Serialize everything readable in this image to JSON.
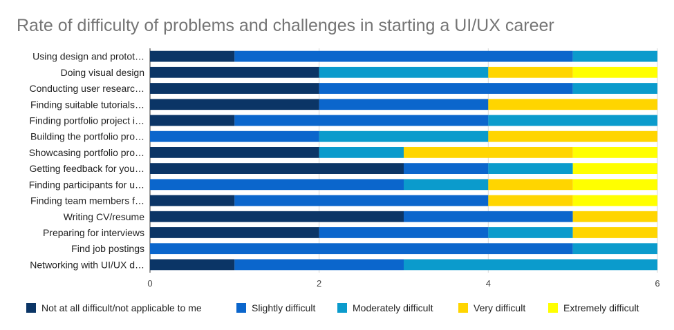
{
  "chart_data": {
    "type": "bar",
    "orientation": "horizontal",
    "stacked": true,
    "title": "Rate of difficulty of problems and challenges in starting a UI/UX career",
    "xlabel": "",
    "ylabel": "",
    "xlim": [
      0,
      6
    ],
    "xticks": [
      "0",
      "2",
      "4",
      "6"
    ],
    "grid": true,
    "legend_position": "bottom",
    "categories": [
      "Using design and protot…",
      "Doing visual design",
      "Conducting user researc…",
      "Finding suitable tutorials…",
      "Finding portfolio project i…",
      "Building the portfolio pro…",
      "Showcasing portfolio pro…",
      "Getting feedback for you…",
      "Finding participants for u…",
      "Finding team members f…",
      "Writing CV/resume",
      "Preparing for interviews",
      "Find job postings",
      "Networking with UI/UX d…"
    ],
    "series": [
      {
        "name": "Not at all difficult/not applicable to me",
        "color": "#0b3566",
        "values": [
          1,
          2,
          2,
          2,
          1,
          0,
          2,
          3,
          0,
          1,
          3,
          2,
          0,
          1
        ]
      },
      {
        "name": "Slightly difficult",
        "color": "#0b66cc",
        "values": [
          4,
          0,
          3,
          2,
          3,
          2,
          0,
          1,
          3,
          3,
          2,
          2,
          5,
          2
        ]
      },
      {
        "name": "Moderately difficult",
        "color": "#0b9bcc",
        "values": [
          1,
          2,
          1,
          0,
          2,
          2,
          1,
          1,
          1,
          0,
          0,
          1,
          1,
          3
        ]
      },
      {
        "name": "Very difficult",
        "color": "#ffd500",
        "values": [
          0,
          1,
          0,
          2,
          0,
          2,
          2,
          0,
          1,
          1,
          1,
          1,
          0,
          0
        ]
      },
      {
        "name": "Extremely difficult",
        "color": "#ffff00",
        "values": [
          0,
          1,
          0,
          0,
          0,
          0,
          1,
          1,
          1,
          1,
          0,
          0,
          0,
          0
        ]
      }
    ]
  }
}
